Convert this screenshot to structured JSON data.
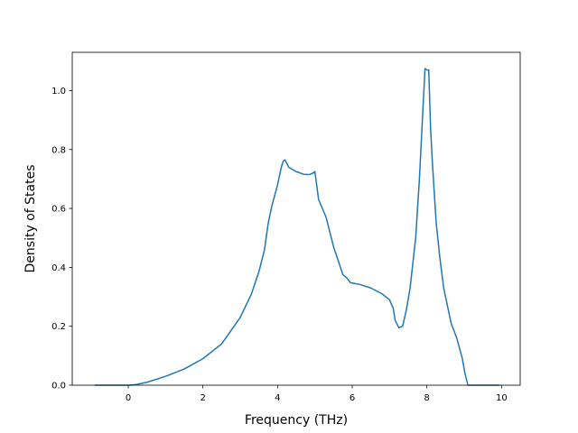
{
  "chart_data": {
    "type": "line",
    "title": "",
    "xlabel": "Frequency (THz)",
    "ylabel": "Density of States",
    "xlim": [
      -1.5,
      10.5
    ],
    "ylim": [
      0,
      1.13
    ],
    "xticks": [
      0,
      2,
      4,
      6,
      8,
      10
    ],
    "yticks": [
      0.0,
      0.2,
      0.4,
      0.6,
      0.8,
      1.0
    ],
    "xtick_labels": [
      "0",
      "2",
      "4",
      "6",
      "8",
      "10"
    ],
    "ytick_labels": [
      "0.0",
      "0.2",
      "0.4",
      "0.6",
      "0.8",
      "1.0"
    ],
    "grid": false,
    "line_color": "#1f77b4",
    "series": [
      {
        "x": [
          -0.9,
          -0.5,
          0.0,
          0.2,
          0.5,
          1.0,
          1.5,
          2.0,
          2.5,
          3.0,
          3.3,
          3.5,
          3.65,
          3.75,
          3.85,
          4.0,
          4.1,
          4.15,
          4.2,
          4.3,
          4.5,
          4.7,
          4.85,
          4.95,
          5.0,
          5.1,
          5.3,
          5.5,
          5.75,
          5.85,
          5.95,
          6.2,
          6.5,
          6.8,
          7.0,
          7.1,
          7.15,
          7.25,
          7.35,
          7.45,
          7.55,
          7.7,
          7.8,
          7.9,
          7.95,
          8.0,
          8.05,
          8.1,
          8.15,
          8.25,
          8.35,
          8.45,
          8.65,
          8.8,
          8.95,
          9.02,
          9.1,
          9.5,
          9.95
        ],
        "y": [
          0.0,
          0.0,
          0.0,
          0.002,
          0.01,
          0.03,
          0.055,
          0.09,
          0.14,
          0.23,
          0.31,
          0.385,
          0.46,
          0.55,
          0.61,
          0.68,
          0.74,
          0.76,
          0.765,
          0.74,
          0.725,
          0.716,
          0.715,
          0.72,
          0.725,
          0.63,
          0.57,
          0.47,
          0.375,
          0.365,
          0.348,
          0.342,
          0.33,
          0.31,
          0.29,
          0.26,
          0.22,
          0.195,
          0.2,
          0.255,
          0.33,
          0.5,
          0.7,
          0.95,
          1.075,
          1.07,
          1.07,
          0.87,
          0.75,
          0.55,
          0.43,
          0.33,
          0.21,
          0.16,
          0.09,
          0.04,
          0.0,
          0.0,
          0.0
        ]
      }
    ]
  }
}
